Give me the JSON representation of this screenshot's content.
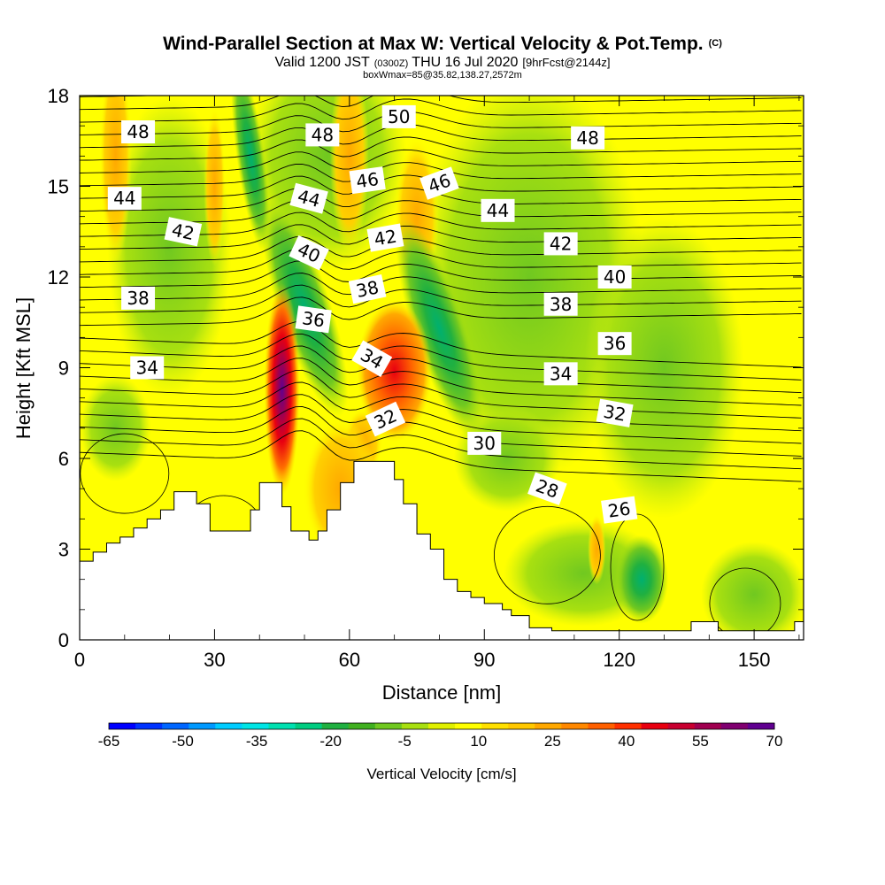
{
  "title": "Wind-Parallel Section at Max W: Vertical Velocity & Pot.Temp.",
  "title_mark": "(C)",
  "subtitle": {
    "lead": "Valid 1200 JST",
    "utc": "(0300Z)",
    "date": "THU 16 Jul 2020",
    "fcst": "[9hrFcst@2144z]"
  },
  "box_info": "boxWmax=85@35.82,138.27,2572m",
  "chart_data": {
    "type": "heatmap",
    "xlabel": "Distance [nm]",
    "ylabel": "Height [Kft MSL]",
    "xlim": [
      0,
      161
    ],
    "ylim": [
      0,
      18
    ],
    "x_ticks": [
      0,
      30,
      60,
      90,
      120,
      150
    ],
    "y_ticks": [
      0,
      3,
      6,
      9,
      12,
      15,
      18
    ],
    "colorbar": {
      "title": "Vertical Velocity [cm/s]",
      "tick_labels": [
        "-65",
        "-50",
        "-35",
        "-20",
        "-5",
        "10",
        "25",
        "40",
        "55",
        "70"
      ],
      "colors": [
        "#0000ff",
        "#0033ff",
        "#0066ff",
        "#0099ff",
        "#00ccff",
        "#00e5e5",
        "#00e0b0",
        "#00cc80",
        "#20b040",
        "#40b020",
        "#70c820",
        "#a8e010",
        "#e0f000",
        "#ffff00",
        "#ffe000",
        "#ffc800",
        "#ffa800",
        "#ff8800",
        "#ff6000",
        "#ff3000",
        "#e80010",
        "#c80030",
        "#a00050",
        "#800070",
        "#600090"
      ]
    },
    "terrain_profile": [
      [
        0,
        2.6
      ],
      [
        3,
        2.9
      ],
      [
        6,
        3.2
      ],
      [
        9,
        3.4
      ],
      [
        12,
        3.7
      ],
      [
        15,
        4.0
      ],
      [
        18,
        4.3
      ],
      [
        21,
        4.9
      ],
      [
        24,
        4.9
      ],
      [
        26,
        4.5
      ],
      [
        29,
        3.6
      ],
      [
        31,
        3.6
      ],
      [
        35,
        3.6
      ],
      [
        38,
        4.3
      ],
      [
        40,
        5.2
      ],
      [
        43,
        5.2
      ],
      [
        45,
        4.4
      ],
      [
        47,
        3.6
      ],
      [
        49,
        3.6
      ],
      [
        51,
        3.3
      ],
      [
        53,
        3.6
      ],
      [
        55,
        4.3
      ],
      [
        58,
        5.2
      ],
      [
        61,
        5.9
      ],
      [
        64,
        5.9
      ],
      [
        67,
        5.9
      ],
      [
        70,
        5.3
      ],
      [
        72,
        4.5
      ],
      [
        75,
        3.5
      ],
      [
        78,
        3.0
      ],
      [
        81,
        2.0
      ],
      [
        84,
        1.6
      ],
      [
        87,
        1.4
      ],
      [
        90,
        1.2
      ],
      [
        94,
        1.0
      ],
      [
        96,
        0.8
      ],
      [
        100,
        0.4
      ],
      [
        105,
        0.3
      ],
      [
        110,
        0.3
      ],
      [
        120,
        0.3
      ],
      [
        130,
        0.3
      ],
      [
        136,
        0.6
      ],
      [
        140,
        0.6
      ],
      [
        142,
        0.3
      ],
      [
        150,
        0.3
      ],
      [
        156,
        0.3
      ],
      [
        159,
        0.6
      ],
      [
        161,
        0.8
      ]
    ],
    "updraft_cores": [
      {
        "x": 45,
        "y": 8.3,
        "peak": 70
      },
      {
        "x": 70,
        "y": 8.9,
        "peak": 40
      },
      {
        "x": 58,
        "y": 5.0,
        "peak": 30
      }
    ],
    "downdraft_bands": [
      {
        "x": 50,
        "y": 11.0,
        "peak": -20
      },
      {
        "x": 80,
        "y": 10.3,
        "peak": -25
      },
      {
        "x": 125,
        "y": 2.0,
        "peak": -20
      }
    ],
    "contour_labels": [
      {
        "text": "50",
        "x": 71,
        "y": 17.3,
        "angle": 0
      },
      {
        "text": "48",
        "x": 13,
        "y": 16.8,
        "angle": 0
      },
      {
        "text": "48",
        "x": 54,
        "y": 16.7,
        "angle": 0
      },
      {
        "text": "48",
        "x": 113,
        "y": 16.6,
        "angle": 0
      },
      {
        "text": "46",
        "x": 64,
        "y": 15.2,
        "angle": -8
      },
      {
        "text": "46",
        "x": 80,
        "y": 15.1,
        "angle": -20
      },
      {
        "text": "44",
        "x": 10,
        "y": 14.6,
        "angle": 0
      },
      {
        "text": "44",
        "x": 51,
        "y": 14.6,
        "angle": 15
      },
      {
        "text": "44",
        "x": 93,
        "y": 14.2,
        "angle": 0
      },
      {
        "text": "42",
        "x": 23,
        "y": 13.5,
        "angle": 12
      },
      {
        "text": "42",
        "x": 68,
        "y": 13.3,
        "angle": -10
      },
      {
        "text": "42",
        "x": 107,
        "y": 13.1,
        "angle": 0
      },
      {
        "text": "40",
        "x": 51,
        "y": 12.8,
        "angle": 25
      },
      {
        "text": "40",
        "x": 119,
        "y": 12.0,
        "angle": 0
      },
      {
        "text": "38",
        "x": 13,
        "y": 11.3,
        "angle": 0
      },
      {
        "text": "38",
        "x": 64,
        "y": 11.6,
        "angle": -12
      },
      {
        "text": "38",
        "x": 107,
        "y": 11.1,
        "angle": 0
      },
      {
        "text": "36",
        "x": 52,
        "y": 10.6,
        "angle": 8
      },
      {
        "text": "36",
        "x": 119,
        "y": 9.8,
        "angle": 0
      },
      {
        "text": "34",
        "x": 15,
        "y": 9.0,
        "angle": 0
      },
      {
        "text": "34",
        "x": 65,
        "y": 9.3,
        "angle": 30
      },
      {
        "text": "34",
        "x": 107,
        "y": 8.8,
        "angle": 0
      },
      {
        "text": "32",
        "x": 68,
        "y": 7.3,
        "angle": -25
      },
      {
        "text": "32",
        "x": 119,
        "y": 7.5,
        "angle": 10
      },
      {
        "text": "30",
        "x": 90,
        "y": 6.5,
        "angle": 0
      },
      {
        "text": "28",
        "x": 104,
        "y": 5.0,
        "angle": 20
      },
      {
        "text": "26",
        "x": 120,
        "y": 4.3,
        "angle": -8
      }
    ]
  }
}
